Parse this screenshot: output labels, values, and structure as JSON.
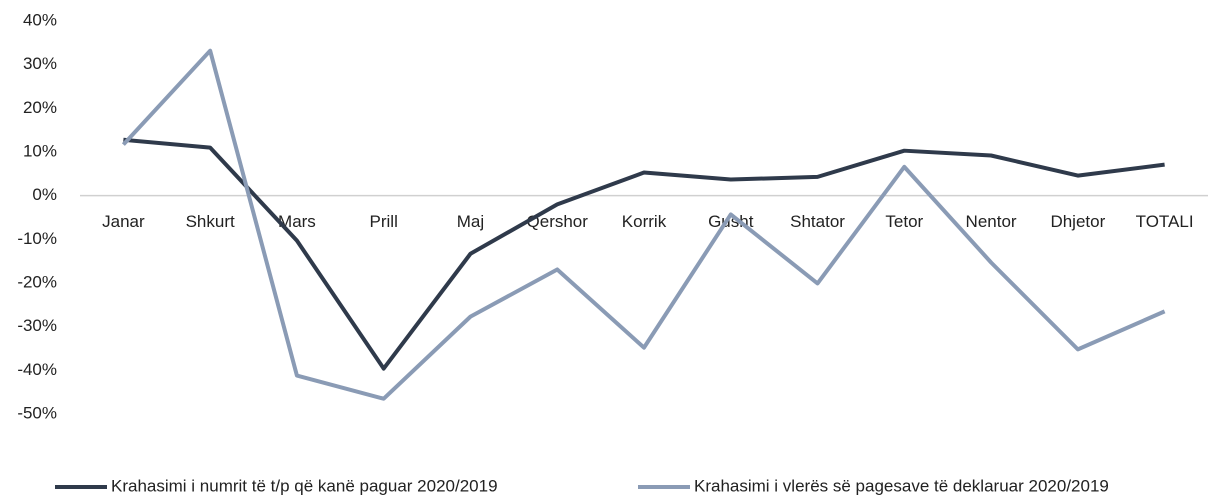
{
  "chart_data": {
    "type": "line",
    "categories": [
      "Janar",
      "Shkurt",
      "Mars",
      "Prill",
      "Maj",
      "Qershor",
      "Korrik",
      "Gusht",
      "Shtator",
      "Tetor",
      "Nentor",
      "Dhjetor",
      "TOTALI"
    ],
    "series": [
      {
        "name": "Krahasimi i numrit të t/p që kanë paguar 2020/2019",
        "color": "#2f3a4b",
        "values": [
          12.8,
          11,
          -10.3,
          -39.6,
          -13.3,
          -2,
          5.3,
          3.7,
          4.3,
          10.3,
          9.2,
          4.6,
          7.1
        ]
      },
      {
        "name": "Krahasimi i vlerës së pagesave të deklaruar 2020/2019",
        "color": "#8a9bb5",
        "values": [
          11.7,
          33.2,
          -41.2,
          -46.5,
          -27.7,
          -16.9,
          -34.8,
          -4.3,
          -20.1,
          6.6,
          -15.3,
          -35.2,
          -26.5
        ]
      }
    ],
    "ylim": [
      -50,
      40
    ],
    "yticks": [
      {
        "value": -50,
        "label": "-50%"
      },
      {
        "value": -40,
        "label": "-40%"
      },
      {
        "value": -30,
        "label": "-30%"
      },
      {
        "value": -20,
        "label": "-20%"
      },
      {
        "value": -10,
        "label": "-10%"
      },
      {
        "value": 0,
        "label": "0%"
      },
      {
        "value": 10,
        "label": "10%"
      },
      {
        "value": 20,
        "label": "20%"
      },
      {
        "value": 30,
        "label": "30%"
      },
      {
        "value": 40,
        "label": "40%"
      }
    ],
    "legend": "bottom"
  }
}
